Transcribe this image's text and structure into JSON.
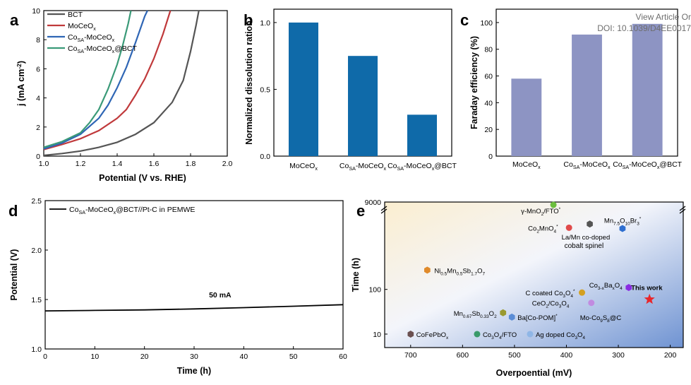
{
  "watermark": {
    "line1": "View Article Or",
    "line2": "DOI: 10.1039/D4EE0017"
  },
  "caption": "",
  "colors": {
    "bct": "#555555",
    "moceo": "#c0393b",
    "cosa": "#2f66b5",
    "cosa_bct": "#3a9a78",
    "bar_b": "#0f6aa9",
    "bar_c": "#8d94c3",
    "line_d": "#000000",
    "star": "#e8262b"
  },
  "chart_data": [
    {
      "panel": "a",
      "type": "line",
      "xlabel": "Potential (V vs. RHE)",
      "ylabel": "j (mA cm⁻²)",
      "xlim": [
        1.0,
        2.0
      ],
      "ylim": [
        0,
        10
      ],
      "xticks": [
        "1.0",
        "1.2",
        "1.4",
        "1.6",
        "1.8",
        "2.0"
      ],
      "yticks": [
        "0",
        "2",
        "4",
        "6",
        "8",
        "10"
      ],
      "legend_position": "top-left",
      "series": [
        {
          "name": "BCT",
          "color": "#555555",
          "points": [
            [
              1.0,
              0.05
            ],
            [
              1.1,
              0.18
            ],
            [
              1.2,
              0.35
            ],
            [
              1.3,
              0.6
            ],
            [
              1.4,
              0.95
            ],
            [
              1.5,
              1.5
            ],
            [
              1.6,
              2.3
            ],
            [
              1.7,
              3.7
            ],
            [
              1.76,
              5.2
            ],
            [
              1.8,
              7.2
            ],
            [
              1.83,
              9.0
            ],
            [
              1.845,
              10.0
            ]
          ]
        },
        {
          "name": "MoCeO",
          "sub": "x",
          "color": "#c0393b",
          "points": [
            [
              1.0,
              0.45
            ],
            [
              1.1,
              0.8
            ],
            [
              1.2,
              1.2
            ],
            [
              1.3,
              1.75
            ],
            [
              1.4,
              2.6
            ],
            [
              1.45,
              3.2
            ],
            [
              1.5,
              4.2
            ],
            [
              1.55,
              5.3
            ],
            [
              1.6,
              6.7
            ],
            [
              1.65,
              8.4
            ],
            [
              1.69,
              10.0
            ]
          ]
        },
        {
          "name": "Co",
          "sub": "SA",
          "suffix": "-MoCeO",
          "sub2": "x",
          "color": "#2f66b5",
          "points": [
            [
              1.0,
              0.5
            ],
            [
              1.1,
              0.9
            ],
            [
              1.2,
              1.5
            ],
            [
              1.3,
              2.6
            ],
            [
              1.35,
              3.5
            ],
            [
              1.4,
              4.7
            ],
            [
              1.45,
              6.1
            ],
            [
              1.5,
              7.8
            ],
            [
              1.55,
              9.6
            ],
            [
              1.565,
              10.0
            ]
          ]
        },
        {
          "name": "Co",
          "sub": "SA",
          "suffix": "-MoCeO",
          "sub2": "x",
          "tail": "@BCT",
          "color": "#3a9a78",
          "points": [
            [
              1.0,
              0.6
            ],
            [
              1.1,
              1.0
            ],
            [
              1.2,
              1.6
            ],
            [
              1.25,
              2.3
            ],
            [
              1.3,
              3.2
            ],
            [
              1.35,
              4.6
            ],
            [
              1.4,
              6.3
            ],
            [
              1.43,
              7.6
            ],
            [
              1.46,
              9.1
            ],
            [
              1.475,
              10.0
            ]
          ]
        }
      ]
    },
    {
      "panel": "b",
      "type": "bar",
      "ylabel": "Normalized dissolution ration",
      "ylim": [
        0,
        1.1
      ],
      "yticks": [
        "0.0",
        "0.5",
        "1.0"
      ],
      "categories": [
        {
          "main": "MoCeO",
          "sub": "x"
        },
        {
          "pre": "Co",
          "sub1": "SA",
          "main": "-MoCeO",
          "sub2": "x"
        },
        {
          "pre": "Co",
          "sub1": "SA",
          "main": "-MoCeO",
          "sub2": "x",
          "tail": "@BCT"
        }
      ],
      "values": [
        1.0,
        0.75,
        0.31
      ]
    },
    {
      "panel": "c",
      "type": "bar",
      "ylabel": "Faraday efficiency (%)",
      "ylim": [
        0,
        110
      ],
      "yticks": [
        "0",
        "20",
        "40",
        "60",
        "80",
        "100"
      ],
      "categories": [
        {
          "main": "MoCeO",
          "sub": "x"
        },
        {
          "pre": "Co",
          "sub1": "SA",
          "main": "-MoCeO",
          "sub2": "x"
        },
        {
          "pre": "Co",
          "sub1": "SA",
          "main": "-MoCeO",
          "sub2": "x",
          "tail": "@BCT"
        }
      ],
      "values": [
        58,
        91,
        99
      ]
    },
    {
      "panel": "d",
      "type": "line",
      "xlabel": "Time (h)",
      "ylabel": "Potential (V)",
      "xlim": [
        0,
        60
      ],
      "ylim": [
        1.0,
        2.5
      ],
      "xticks": [
        "0",
        "10",
        "20",
        "30",
        "40",
        "50",
        "60"
      ],
      "yticks": [
        "1.0",
        "1.5",
        "2.0",
        "2.5"
      ],
      "legend": {
        "pre": "Co",
        "sub1": "SA",
        "main": "-MoCeO",
        "sub2": "x",
        "tail": "@BCT//Pt-C in PEMWE"
      },
      "annotation": "50 mA",
      "series": [
        {
          "name": "Co_SA-MoCeO_x@BCT//Pt-C in PEMWE",
          "points": [
            [
              0,
              1.385
            ],
            [
              10,
              1.39
            ],
            [
              20,
              1.395
            ],
            [
              30,
              1.405
            ],
            [
              40,
              1.418
            ],
            [
              50,
              1.432
            ],
            [
              60,
              1.448
            ]
          ]
        }
      ]
    },
    {
      "panel": "e",
      "type": "scatter",
      "xlabel": "Overpoential  (mV)",
      "ylabel": "Time (h)",
      "xlim": [
        750,
        175
      ],
      "yscale": "log",
      "ylim": [
        5,
        9000
      ],
      "xticks": [
        "700",
        "600",
        "500",
        "400",
        "300",
        "200"
      ],
      "yticks": [
        "10",
        "100",
        "9000"
      ],
      "points": [
        {
          "x": 425,
          "y": 9000,
          "color": "#6cbe3e",
          "shape": "circle",
          "label": [
            [
              "γ-MnO"
            ],
            [
              "2",
              "sub"
            ],
            [
              "/FTO"
            ],
            [
              "*",
              "sup"
            ]
          ]
        },
        {
          "x": 395,
          "y": 2400,
          "color": "#e04a4a",
          "shape": "circle",
          "label": [
            [
              "Co"
            ],
            [
              "2",
              "sub"
            ],
            [
              "MnO"
            ],
            [
              "4",
              "sub"
            ],
            [
              "*",
              "sup"
            ]
          ]
        },
        {
          "x": 355,
          "y": 2900,
          "color": "#555555",
          "shape": "hexagon",
          "label": [
            [
              "La/Mn co-doped"
            ]
          ],
          "label2": "cobalt spinel"
        },
        {
          "x": 292,
          "y": 2300,
          "color": "#2f6fd0",
          "shape": "hexagon",
          "label": [
            [
              "Mn"
            ],
            [
              "7.5",
              "sub"
            ],
            [
              "O"
            ],
            [
              "10",
              "sub"
            ],
            [
              "Br"
            ],
            [
              "3",
              "sub"
            ],
            [
              "*",
              "sup"
            ]
          ]
        },
        {
          "x": 668,
          "y": 270,
          "color": "#e08a2a",
          "shape": "hexagon",
          "label": [
            [
              "Ni"
            ],
            [
              "0.5",
              "sub"
            ],
            [
              "Mn"
            ],
            [
              "0.5",
              "sub"
            ],
            [
              "Sb"
            ],
            [
              "1.7",
              "sub"
            ],
            [
              "O"
            ],
            [
              "7",
              "sub"
            ]
          ]
        },
        {
          "x": 280,
          "y": 110,
          "color": "#8a2be2",
          "shape": "hexagon",
          "label": [
            [
              "Co"
            ],
            [
              "3-x",
              "sub"
            ],
            [
              "Ba"
            ],
            [
              "x",
              "sub"
            ],
            [
              "O"
            ],
            [
              "4",
              "sub"
            ]
          ]
        },
        {
          "x": 370,
          "y": 85,
          "color": "#d4a020",
          "shape": "circle",
          "label": [
            [
              "C coated Co"
            ],
            [
              "3",
              "sub"
            ],
            [
              "O"
            ],
            [
              "4",
              "sub"
            ],
            [
              "*",
              "sup"
            ]
          ]
        },
        {
          "x": 352,
          "y": 50,
          "color": "#c18be0",
          "shape": "circle",
          "label": [
            [
              "CeO"
            ],
            [
              "2",
              "sub"
            ],
            [
              "/Co"
            ],
            [
              "3",
              "sub"
            ],
            [
              "O"
            ],
            [
              "4",
              "sub"
            ]
          ]
        },
        {
          "x": 240,
          "y": 60,
          "color": "#e8262b",
          "shape": "star",
          "label": [
            [
              "This work"
            ]
          ]
        },
        {
          "x": 522,
          "y": 30,
          "color": "#9a9a30",
          "shape": "hexagon",
          "label": [
            [
              "Mn"
            ],
            [
              "0.67",
              "sub"
            ],
            [
              "Sb"
            ],
            [
              "0.33",
              "sub"
            ],
            [
              "O"
            ],
            [
              "2",
              "sub"
            ]
          ]
        },
        {
          "x": 505,
          "y": 24,
          "color": "#5b8dd6",
          "shape": "hexagon",
          "label": [
            [
              "Ba[Co-POM]"
            ],
            [
              "*",
              "sup"
            ]
          ]
        },
        {
          "x": 295,
          "y": 24,
          "color": "#2f6fd0",
          "shape": "none",
          "label": [
            [
              "Mo-Co"
            ],
            [
              "9",
              "sub"
            ],
            [
              "S"
            ],
            [
              "8",
              "sub"
            ],
            [
              "@C"
            ]
          ]
        },
        {
          "x": 700,
          "y": 10,
          "color": "#6b5050",
          "shape": "hexagon",
          "label": [
            [
              "CoFePbO"
            ],
            [
              "x",
              "sub"
            ]
          ]
        },
        {
          "x": 572,
          "y": 10,
          "color": "#3a9a6a",
          "shape": "circle",
          "label": [
            [
              "Co"
            ],
            [
              "3",
              "sub"
            ],
            [
              "O"
            ],
            [
              "4",
              "sub"
            ],
            [
              "/FTO"
            ]
          ]
        },
        {
          "x": 470,
          "y": 10,
          "color": "#8fb6e6",
          "shape": "circle",
          "label": [
            [
              "Ag doped Co"
            ],
            [
              "3",
              "sub"
            ],
            [
              "O"
            ],
            [
              "4",
              "sub"
            ]
          ]
        }
      ]
    }
  ]
}
